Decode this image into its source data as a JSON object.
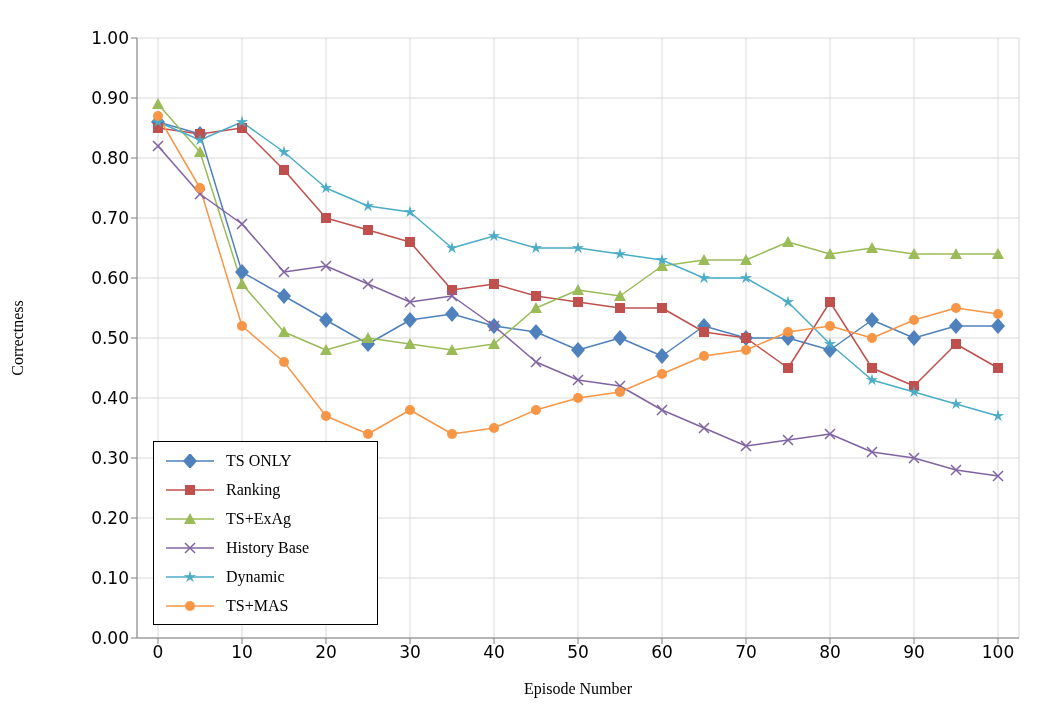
{
  "chart_data": {
    "type": "line",
    "xlabel": "Episode Number",
    "ylabel": "Correctness",
    "x": [
      0,
      5,
      10,
      15,
      20,
      25,
      30,
      35,
      40,
      45,
      50,
      55,
      60,
      65,
      70,
      75,
      80,
      85,
      90,
      95,
      100
    ],
    "xlim": [
      -2.5,
      102.5
    ],
    "xticks": [
      0,
      10,
      20,
      30,
      40,
      50,
      60,
      70,
      80,
      90,
      100
    ],
    "ylim": [
      0,
      1
    ],
    "yticks": [
      {
        "value": 0,
        "label": "0.00"
      },
      {
        "value": 0.1,
        "label": "0.10"
      },
      {
        "value": 0.2,
        "label": "0.20"
      },
      {
        "value": 0.3,
        "label": "0.30"
      },
      {
        "value": 0.4,
        "label": "0.40"
      },
      {
        "value": 0.5,
        "label": "0.50"
      },
      {
        "value": 0.6,
        "label": "0.60"
      },
      {
        "value": 0.7,
        "label": "0.70"
      },
      {
        "value": 0.8,
        "label": "0.80"
      },
      {
        "value": 0.9,
        "label": "0.90"
      },
      {
        "value": 1,
        "label": "1.00"
      }
    ],
    "grid": true,
    "legend": "bottom left",
    "line_style": "solid",
    "series": [
      {
        "name": "TS ONLY",
        "color": "#4f81bd",
        "marker": "diamond",
        "values": [
          0.86,
          0.84,
          0.61,
          0.57,
          0.53,
          0.49,
          0.53,
          0.54,
          0.52,
          0.51,
          0.48,
          0.5,
          0.47,
          0.52,
          0.5,
          0.5,
          0.48,
          0.53,
          0.5,
          0.52,
          0.52
        ]
      },
      {
        "name": "Ranking",
        "color": "#c0504d",
        "marker": "square",
        "values": [
          0.85,
          0.84,
          0.85,
          0.78,
          0.7,
          0.68,
          0.66,
          0.58,
          0.59,
          0.57,
          0.56,
          0.55,
          0.55,
          0.51,
          0.5,
          0.45,
          0.56,
          0.45,
          0.42,
          0.49,
          0.45
        ]
      },
      {
        "name": "TS+ExAg",
        "color": "#9bbb59",
        "marker": "triangle",
        "values": [
          0.89,
          0.81,
          0.59,
          0.51,
          0.48,
          0.5,
          0.49,
          0.48,
          0.49,
          0.55,
          0.58,
          0.57,
          0.62,
          0.63,
          0.63,
          0.66,
          0.64,
          0.65,
          0.64,
          0.64,
          0.64
        ]
      },
      {
        "name": "History Base",
        "color": "#8064a2",
        "marker": "cross",
        "values": [
          0.82,
          0.74,
          0.69,
          0.61,
          0.62,
          0.59,
          0.56,
          0.57,
          0.52,
          0.46,
          0.43,
          0.42,
          0.38,
          0.35,
          0.32,
          0.33,
          0.34,
          0.31,
          0.3,
          0.28,
          0.27
        ]
      },
      {
        "name": "Dynamic",
        "color": "#4bacc6",
        "marker": "star",
        "values": [
          0.86,
          0.83,
          0.86,
          0.81,
          0.75,
          0.72,
          0.71,
          0.65,
          0.67,
          0.65,
          0.65,
          0.64,
          0.63,
          0.6,
          0.6,
          0.56,
          0.49,
          0.43,
          0.41,
          0.39,
          0.37
        ]
      },
      {
        "name": "TS+MAS",
        "color": "#f79646",
        "marker": "circle",
        "values": [
          0.87,
          0.75,
          0.52,
          0.46,
          0.37,
          0.34,
          0.38,
          0.34,
          0.35,
          0.38,
          0.4,
          0.41,
          0.44,
          0.47,
          0.48,
          0.51,
          0.52,
          0.5,
          0.53,
          0.55,
          0.54
        ]
      }
    ]
  }
}
